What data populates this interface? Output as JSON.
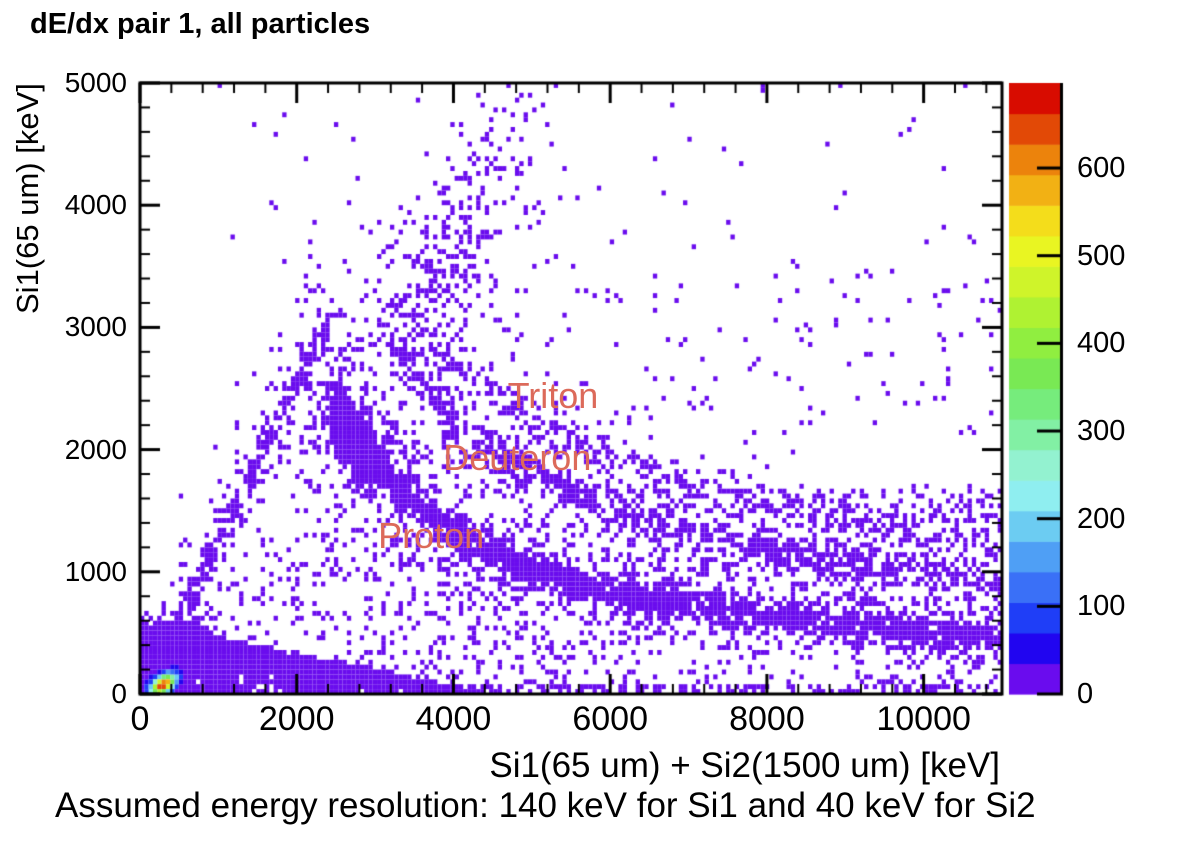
{
  "page": {
    "footer": "Assumed energy resolution: 140 keV for Si1 and 40 keV for Si2"
  },
  "chart_data": {
    "type": "heatmap",
    "title": "dE/dx pair 1, all particles",
    "xlabel": "Si1(65 um) + Si2(1500 um) [keV]",
    "ylabel": "Si1(65 um) [keV]",
    "xlim": [
      0,
      11000
    ],
    "ylim": [
      0,
      5000
    ],
    "x_major_ticks": [
      0,
      2000,
      4000,
      6000,
      8000,
      10000
    ],
    "x_minor_step": 400,
    "y_major_ticks": [
      0,
      1000,
      2000,
      3000,
      4000,
      5000
    ],
    "y_minor_step": 200,
    "grid": false,
    "point_bin_kev": [
      55,
      40
    ],
    "colorbar": {
      "position": "right",
      "zmax": 697,
      "ticks": [
        0,
        100,
        200,
        300,
        400,
        500,
        600
      ],
      "palette": [
        "#6a0cee",
        "#2105f0",
        "#1f3ef7",
        "#3a70f7",
        "#4f9ff5",
        "#6cccf2",
        "#8feef0",
        "#93f2d0",
        "#82f0a4",
        "#76ec7c",
        "#79e954",
        "#90ee40",
        "#aff232",
        "#cff42a",
        "#e9f522",
        "#f4dd1b",
        "#f2b114",
        "#ec830c",
        "#e24906",
        "#d80c00"
      ]
    },
    "annotation_color": "#dc6a5a",
    "annotations": [
      {
        "text": "Triton",
        "x": 5270,
        "y": 2440
      },
      {
        "text": "Deuteron",
        "x": 4815,
        "y": 1930
      },
      {
        "text": "Proton",
        "x": 3715,
        "y": 1295
      }
    ],
    "hotspot": {
      "center": [
        295,
        75
      ],
      "sigma": [
        105,
        58
      ],
      "rho": 0.5,
      "peak": 690
    },
    "clusters": [
      {
        "name": "proton-band",
        "kind": "ridge",
        "count": 2400,
        "sigma_x": 35,
        "sigma_y": 65,
        "fuzz_frac": 0.22,
        "fuzz_mult": 3.2,
        "ridge": [
          [
            2430,
            2380
          ],
          [
            2700,
            2140
          ],
          [
            3000,
            1900
          ],
          [
            3350,
            1660
          ],
          [
            3750,
            1430
          ],
          [
            4200,
            1240
          ],
          [
            4800,
            1060
          ],
          [
            5500,
            905
          ],
          [
            6300,
            795
          ],
          [
            7200,
            705
          ],
          [
            8200,
            625
          ],
          [
            9300,
            555
          ],
          [
            10400,
            495
          ],
          [
            11000,
            465
          ]
        ]
      },
      {
        "name": "proton-peak",
        "kind": "ridge",
        "count": 480,
        "sigma_x": 90,
        "sigma_y": 130,
        "fuzz_frac": 0.1,
        "fuzz_mult": 2,
        "ridge": [
          [
            2480,
            2350
          ],
          [
            2700,
            2120
          ],
          [
            2950,
            1880
          ]
        ]
      },
      {
        "name": "deuteron-band",
        "kind": "ridge",
        "count": 850,
        "sigma_x": 40,
        "sigma_y": 75,
        "fuzz_frac": 0.3,
        "fuzz_mult": 3,
        "ridge": [
          [
            3100,
            3020
          ],
          [
            3400,
            2710
          ],
          [
            3750,
            2430
          ],
          [
            4200,
            2150
          ],
          [
            4800,
            1885
          ],
          [
            5500,
            1660
          ],
          [
            6300,
            1465
          ],
          [
            7200,
            1305
          ],
          [
            8200,
            1165
          ],
          [
            9300,
            1045
          ],
          [
            10400,
            955
          ],
          [
            11000,
            905
          ]
        ]
      },
      {
        "name": "triton-band",
        "kind": "ridge",
        "count": 420,
        "sigma_x": 45,
        "sigma_y": 85,
        "fuzz_frac": 0.35,
        "fuzz_mult": 3,
        "ridge": [
          [
            3400,
            3120
          ],
          [
            3800,
            2820
          ],
          [
            4300,
            2545
          ],
          [
            4900,
            2290
          ],
          [
            5600,
            2060
          ],
          [
            6400,
            1865
          ],
          [
            7300,
            1685
          ],
          [
            8300,
            1535
          ],
          [
            9400,
            1405
          ],
          [
            10500,
            1300
          ],
          [
            11000,
            1260
          ]
        ]
      },
      {
        "name": "diagonal-edge",
        "kind": "ridge",
        "count": 430,
        "sigma_x": 40,
        "sigma_y": 50,
        "fuzz_frac": 0.3,
        "fuzz_mult": 3.5,
        "ridge": [
          [
            60,
            60
          ],
          [
            800,
            1010
          ],
          [
            1600,
            2040
          ],
          [
            2430,
            3060
          ]
        ]
      },
      {
        "name": "triangle-fill",
        "kind": "gauss",
        "count": 330,
        "center": [
          2650,
          2150
        ],
        "sigma_x": 650,
        "sigma_y": 620
      },
      {
        "name": "plume",
        "kind": "ridge",
        "count": 150,
        "sigma_x": 280,
        "sigma_y": 200,
        "fuzz_frac": 0.2,
        "fuzz_mult": 1.8,
        "ridge": [
          [
            3650,
            3250
          ],
          [
            4000,
            3700
          ],
          [
            4350,
            4150
          ],
          [
            4650,
            4550
          ],
          [
            4900,
            4900
          ]
        ]
      },
      {
        "name": "upper-fan",
        "kind": "gauss",
        "count": 130,
        "center": [
          3900,
          3500
        ],
        "sigma_x": 450,
        "sigma_y": 350
      },
      {
        "name": "noise-under-band",
        "kind": "box",
        "count": 350,
        "x": [
          2800,
          6500
        ],
        "y": [
          50,
          1000
        ]
      },
      {
        "name": "noise-right-low",
        "kind": "box",
        "count": 160,
        "x": [
          6500,
          11000
        ],
        "y": [
          60,
          700
        ]
      },
      {
        "name": "noise-right-mid",
        "kind": "box",
        "count": 500,
        "x": [
          5500,
          11000
        ],
        "y": [
          700,
          1700
        ]
      },
      {
        "name": "noise-mid",
        "kind": "box",
        "count": 260,
        "x": [
          3200,
          5500
        ],
        "y": [
          1000,
          2100
        ]
      },
      {
        "name": "noise-high",
        "kind": "box",
        "count": 170,
        "x": [
          2000,
          11000
        ],
        "y": [
          2100,
          3500
        ]
      },
      {
        "name": "noise-top",
        "kind": "box",
        "count": 55,
        "x": [
          1000,
          11000
        ],
        "y": [
          3500,
          5000
        ]
      },
      {
        "name": "bottom-strip",
        "kind": "box",
        "count": 170,
        "x": [
          3800,
          11000
        ],
        "y": [
          0,
          80
        ]
      },
      {
        "name": "noise-left-low",
        "kind": "box",
        "count": 160,
        "x": [
          500,
          2800
        ],
        "y": [
          120,
          1300
        ]
      },
      {
        "name": "bottom-wedge",
        "kind": "wedge",
        "count": 2600,
        "x": [
          0,
          4400
        ],
        "pow_x": 1.7,
        "top": [
          [
            0,
            580
          ],
          [
            400,
            580
          ],
          [
            1200,
            430
          ],
          [
            2200,
            300
          ],
          [
            3200,
            170
          ],
          [
            4400,
            0
          ]
        ]
      },
      {
        "name": "wedge-core",
        "kind": "wedge",
        "count": 800,
        "x": [
          60,
          820
        ],
        "pow_x": 1.3,
        "top": [
          [
            0,
            555
          ],
          [
            820,
            495
          ]
        ]
      },
      {
        "name": "wedge-hill",
        "kind": "gauss",
        "count": 110,
        "center": [
          520,
          480
        ],
        "sigma_x": 200,
        "sigma_y": 110
      }
    ]
  }
}
